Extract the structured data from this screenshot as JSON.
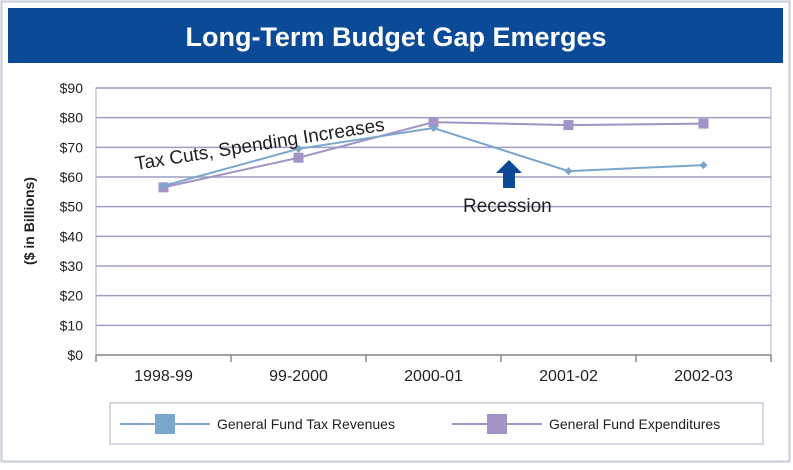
{
  "chart_data": {
    "type": "line",
    "title": "Long-Term Budget Gap Emerges",
    "ylabel": "($ in Billions)",
    "xlabel": "",
    "categories": [
      "1998-99",
      "99-2000",
      "2000-01",
      "2001-02",
      "2002-03"
    ],
    "ylim": [
      0,
      90
    ],
    "yticks": [
      0,
      10,
      20,
      30,
      40,
      50,
      60,
      70,
      80,
      90
    ],
    "ytick_labels": [
      "$0",
      "$10",
      "$20",
      "$30",
      "$40",
      "$50",
      "$60",
      "$70",
      "$80",
      "$90"
    ],
    "grid": true,
    "legend_position": "bottom",
    "series": [
      {
        "name": "General Fund Tax Revenues",
        "values": [
          57,
          69.5,
          76.5,
          62,
          64
        ],
        "color": "#7aa6cc"
      },
      {
        "name": "General Fund Expenditures",
        "values": [
          56.5,
          66.5,
          78.5,
          77.5,
          78
        ],
        "color": "#a393c7"
      }
    ],
    "annotations": [
      {
        "text": "Tax Cuts, Spending Increases"
      },
      {
        "text": "Recession"
      }
    ],
    "colors": {
      "title_bar": "#0a4a96",
      "arrow": "#0a4a96",
      "grid": "#9e9ec4",
      "frame": "#c4ccd8"
    }
  }
}
